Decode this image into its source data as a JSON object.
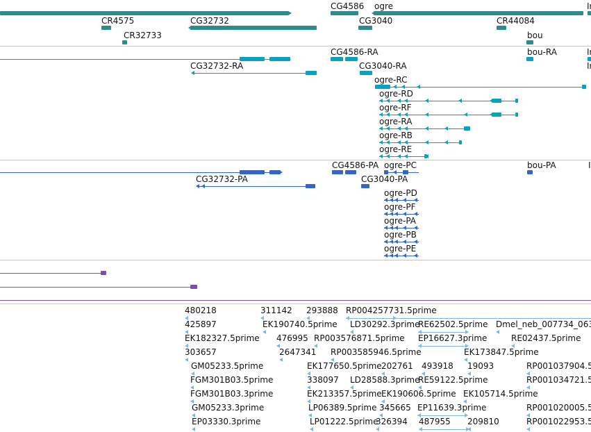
{
  "colors": {
    "gene": "#2e8b8b",
    "transcript": "#0aa0c0",
    "protein": "#3366cc",
    "other": "#7b4fb0",
    "est": "#80b8e0",
    "separator": "#c8c8c8",
    "label": "#111111"
  },
  "tracks": {
    "gene": {
      "labels": [
        "CG4586",
        "ogre",
        "Ir",
        "CR4575",
        "CG32732",
        "CG3040",
        "CR44084",
        "CR32733",
        "bou"
      ]
    },
    "transcript": {
      "labels": [
        "CG4586-RA",
        "bou-RA",
        "Ir",
        "CG32732-RA",
        "CG3040-RA",
        "Ir",
        "ogre-RC",
        "ogre-RD",
        "ogre-RF",
        "ogre-RA",
        "ogre-RB",
        "ogre-RE"
      ]
    },
    "protein": {
      "labels": [
        "CG4586-PA",
        "ogre-PC",
        "bou-PA",
        "I",
        "CG32732-PA",
        "CG3040-PA",
        "ogre-PD",
        "ogre-PF",
        "ogre-PA",
        "ogre-PB",
        "ogre-PE"
      ]
    },
    "est": {
      "labels": [
        "480218",
        "311142",
        "293888",
        "RP004257731.5prime",
        "425897",
        "EK190740.5prime",
        "LD30292.3prime",
        "RE62502.5prime",
        "Dmel_neb_007734_063",
        "EK182327.5prime",
        "476995",
        "RP003576871.5prime",
        "EP16627.3prime",
        "RE02437.5prime",
        "303657",
        "2647341",
        "RP003585946.5prime",
        "EK173847.5prime",
        "GM05233.5prime",
        "EK177650.5prime",
        "202761",
        "493918",
        "19093",
        "RP001037904.5",
        "FGM301B03.5prime",
        "338097",
        "LD28588.3prime",
        "RE59122.5prime",
        "RP001034721.5",
        "FGM301B03.3prime",
        "EK213357.5prime",
        "EK190606.5prime",
        "EK105714.5prime",
        "GM05233.3prime",
        "LP06389.5prime",
        "345665",
        "EP11639.3prime",
        "RP001020005.5",
        "EP03330.3prime",
        "LP01222.5prime",
        "326394",
        "487955",
        "209810",
        "RP001022953.5"
      ]
    }
  }
}
